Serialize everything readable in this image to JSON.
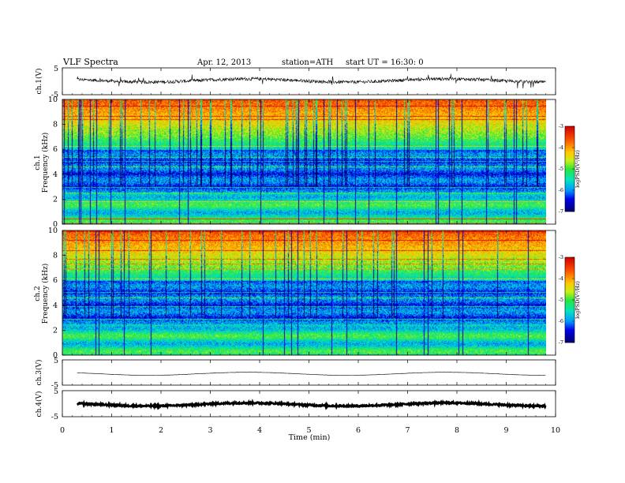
{
  "header": {
    "title": "VLF  Spectra",
    "date": "Apr. 12, 2013",
    "station": "station=ATH",
    "start": "start  UT  =    16:30: 0"
  },
  "chart_data": [
    {
      "type": "line",
      "ylabel": "ch.1(V)",
      "ylim": [
        -5,
        5
      ],
      "yticks": [
        "5",
        "-5"
      ],
      "xlim": [
        0,
        10
      ],
      "description_values": {
        "mean": 0.3,
        "noise_amplitude": 0.6,
        "spike_amplitude": 2.5
      }
    },
    {
      "type": "heatmap",
      "ylabel_top": "ch.1",
      "ylabel": "Frequency  (kHz)",
      "ylim": [
        0,
        10
      ],
      "yticks": [
        "0",
        "2",
        "4",
        "6",
        "8",
        "10"
      ],
      "xlim": [
        0,
        10
      ],
      "data_end_min": 9.8,
      "colorbar": {
        "label": "logPSD(V²/Hz)",
        "range": [
          -7,
          -3
        ],
        "ticks": [
          "-7",
          "-6",
          "-5",
          "-4",
          "-3"
        ]
      }
    },
    {
      "type": "heatmap",
      "ylabel_top": "ch.2",
      "ylabel": "Frequency  (kHz)",
      "ylim": [
        0,
        10
      ],
      "yticks": [
        "0",
        "2",
        "4",
        "6",
        "8",
        "10"
      ],
      "xlim": [
        0,
        10
      ],
      "data_end_min": 9.8,
      "colorbar": {
        "label": "logPSD(V²/Hz)",
        "range": [
          -7,
          -3
        ],
        "ticks": [
          "-7",
          "-6",
          "-5",
          "-4",
          "-3"
        ]
      }
    },
    {
      "type": "line",
      "ylabel": "ch.3(V)",
      "ylim": [
        -5,
        5
      ],
      "yticks": [
        "5",
        "-5"
      ],
      "xlim": [
        0,
        10
      ],
      "description_values": {
        "mean": -0.5,
        "noise_amplitude": 0.05
      }
    },
    {
      "type": "line",
      "ylabel": "ch.4(V)",
      "ylim": [
        -5,
        5
      ],
      "yticks": [
        "5",
        "-5"
      ],
      "xlim": [
        0,
        10
      ],
      "description_values": {
        "mean": -0.3,
        "noise_amplitude": 0.3
      }
    }
  ],
  "xaxis": {
    "label": "Time  (min)",
    "ticks": [
      "0",
      "1",
      "2",
      "3",
      "4",
      "5",
      "6",
      "7",
      "8",
      "9",
      "10"
    ]
  }
}
